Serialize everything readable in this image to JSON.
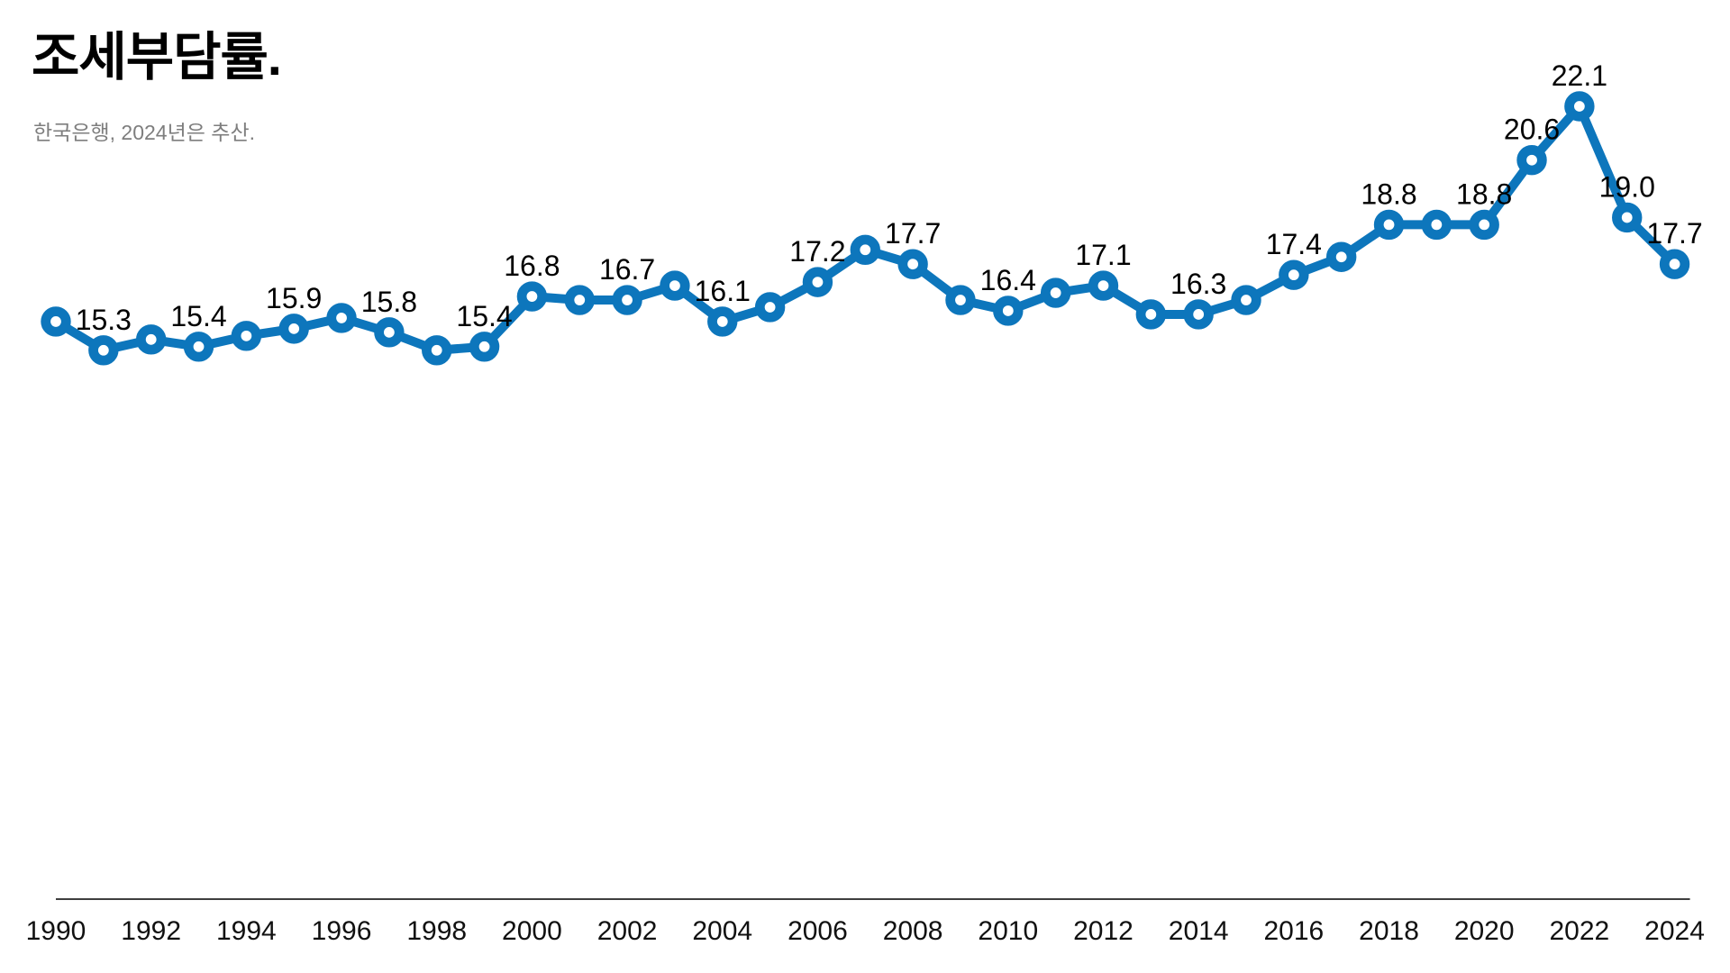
{
  "chart_data": {
    "type": "line",
    "title": "조세부담률.",
    "source_note": "한국은행, 2024년은 추산.",
    "series_name": "조세부담률",
    "x": [
      1990,
      1991,
      1992,
      1993,
      1994,
      1995,
      1996,
      1997,
      1998,
      1999,
      2000,
      2001,
      2002,
      2003,
      2004,
      2005,
      2006,
      2007,
      2008,
      2009,
      2010,
      2011,
      2012,
      2013,
      2014,
      2015,
      2016,
      2017,
      2018,
      2019,
      2020,
      2021,
      2022,
      2023,
      2024
    ],
    "values": [
      16.1,
      15.3,
      15.6,
      15.4,
      15.7,
      15.9,
      16.2,
      15.8,
      15.3,
      15.4,
      16.8,
      16.7,
      16.7,
      17.1,
      16.1,
      16.5,
      17.2,
      18.1,
      17.7,
      16.7,
      16.4,
      16.9,
      17.1,
      16.3,
      16.3,
      16.7,
      17.4,
      17.9,
      18.8,
      18.8,
      18.8,
      20.6,
      22.1,
      19.0,
      17.7
    ],
    "labeled_years": [
      1991,
      1993,
      1995,
      1997,
      1999,
      2000,
      2002,
      2004,
      2006,
      2008,
      2010,
      2012,
      2014,
      2016,
      2018,
      2020,
      2021,
      2022,
      2023,
      2024
    ],
    "x_ticks": [
      1990,
      1992,
      1994,
      1996,
      1998,
      2000,
      2002,
      2004,
      2006,
      2008,
      2010,
      2012,
      2014,
      2016,
      2018,
      2020,
      2022,
      2024
    ],
    "ylim": [
      0,
      25
    ],
    "grid": false,
    "legend": "none",
    "y_axis_visible": false,
    "marker": "open-circle",
    "line_color": "#0d76bc",
    "value_label_color": "#000000",
    "tick_label_color": "#111111",
    "axis_line_color": "#3f3f3f",
    "title_color": "#000000",
    "source_color": "#7e7e7e"
  }
}
